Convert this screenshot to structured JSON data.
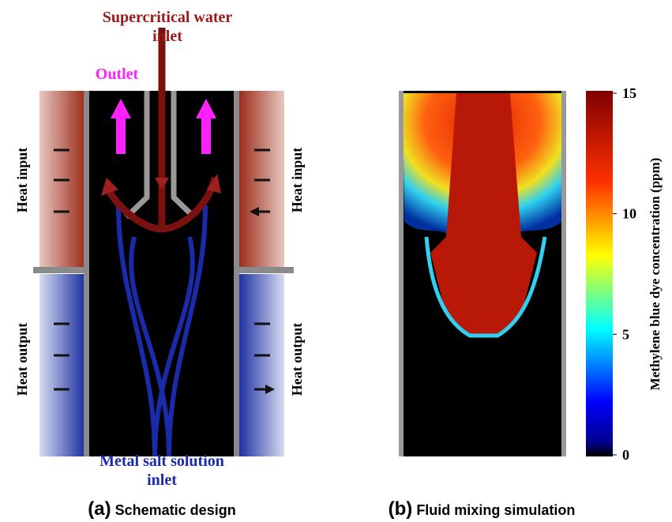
{
  "schematic": {
    "inlet_top": [
      "Supercritical water",
      "inlet"
    ],
    "outlet": "Outlet",
    "heat_input": [
      "Heat input",
      "Heat input"
    ],
    "heat_output": [
      "Heat output",
      "Heat output"
    ],
    "inlet_bottom": [
      "Metal salt solution",
      "inlet"
    ],
    "caption": {
      "letter": "(a)",
      "text": "Schematic design"
    }
  },
  "simulation": {
    "caption": {
      "letter": "(b)",
      "text": "Fluid mixing simulation"
    },
    "colorbar": {
      "label": "Methylene blue dye concentration (ppm)",
      "ticks": [
        0,
        5,
        10,
        15
      ]
    }
  }
}
